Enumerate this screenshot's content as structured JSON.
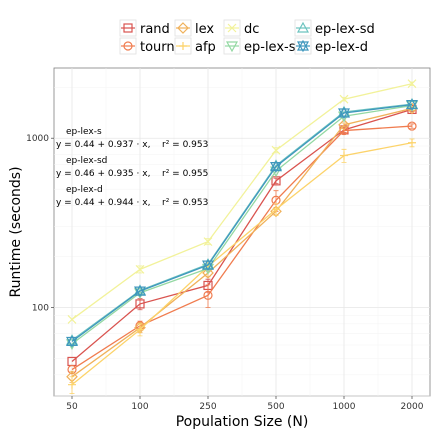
{
  "chart_data": {
    "type": "line",
    "xlabel": "Population Size (N)",
    "ylabel": "Runtime (seconds)",
    "x": [
      50,
      100,
      250,
      500,
      1000,
      2000
    ],
    "x_tick_labels": [
      "50",
      "100",
      "250",
      "500",
      "1000",
      "2000"
    ],
    "y_scale": "log",
    "ylim": [
      30,
      2600
    ],
    "y_ticks": [
      100,
      1000
    ],
    "y_tick_labels": [
      "100",
      "1000"
    ],
    "grid": true,
    "legend_position": "top",
    "series": [
      {
        "name": "rand",
        "color": "#d9534f",
        "marker": "square",
        "values": [
          48,
          105,
          135,
          560,
          1120,
          1480
        ],
        "err": [
          0,
          8,
          12,
          20,
          40,
          40
        ]
      },
      {
        "name": "tourn",
        "color": "#f07c4f",
        "marker": "circle",
        "values": [
          43,
          78,
          118,
          430,
          1110,
          1180
        ],
        "err": [
          0,
          5,
          18,
          60,
          35,
          35
        ]
      },
      {
        "name": "lex",
        "color": "#f0b15a",
        "marker": "diamond",
        "values": [
          39,
          76,
          160,
          370,
          1200,
          1500
        ],
        "err": [
          3,
          5,
          8,
          20,
          30,
          40
        ]
      },
      {
        "name": "afp",
        "color": "#fcd36a",
        "marker": "cross",
        "values": [
          35,
          74,
          175,
          380,
          790,
          940
        ],
        "err": [
          4,
          6,
          8,
          30,
          70,
          50
        ]
      },
      {
        "name": "dc",
        "color": "#f2f29a",
        "marker": "x",
        "values": [
          85,
          168,
          245,
          850,
          1700,
          2100
        ],
        "err": [
          0,
          8,
          10,
          30,
          40,
          50
        ]
      },
      {
        "name": "ep-lex-s",
        "color": "#93d8a2",
        "marker": "triangle-down",
        "values": [
          61,
          122,
          170,
          640,
          1350,
          1560
        ],
        "err": [
          0,
          0,
          0,
          0,
          0,
          0
        ]
      },
      {
        "name": "ep-lex-sd",
        "color": "#6cc3bf",
        "marker": "triangle",
        "values": [
          64,
          126,
          180,
          690,
          1430,
          1590
        ],
        "err": [
          0,
          0,
          0,
          0,
          0,
          0
        ]
      },
      {
        "name": "ep-lex-d",
        "color": "#3f97bd",
        "marker": "star",
        "values": [
          63,
          125,
          178,
          680,
          1410,
          1580
        ],
        "err": [
          0,
          0,
          0,
          0,
          0,
          0
        ]
      }
    ],
    "annotations": [
      {
        "label": "ep-lex-s",
        "equation": "y = 0.44 + 0.937 · x,",
        "r2": "r² = 0.953"
      },
      {
        "label": "ep-lex-sd",
        "equation": "y = 0.46 + 0.935 · x,",
        "r2": "r² = 0.955"
      },
      {
        "label": "ep-lex-d",
        "equation": "y = 0.44 + 0.944 · x,",
        "r2": "r² = 0.953"
      }
    ]
  }
}
